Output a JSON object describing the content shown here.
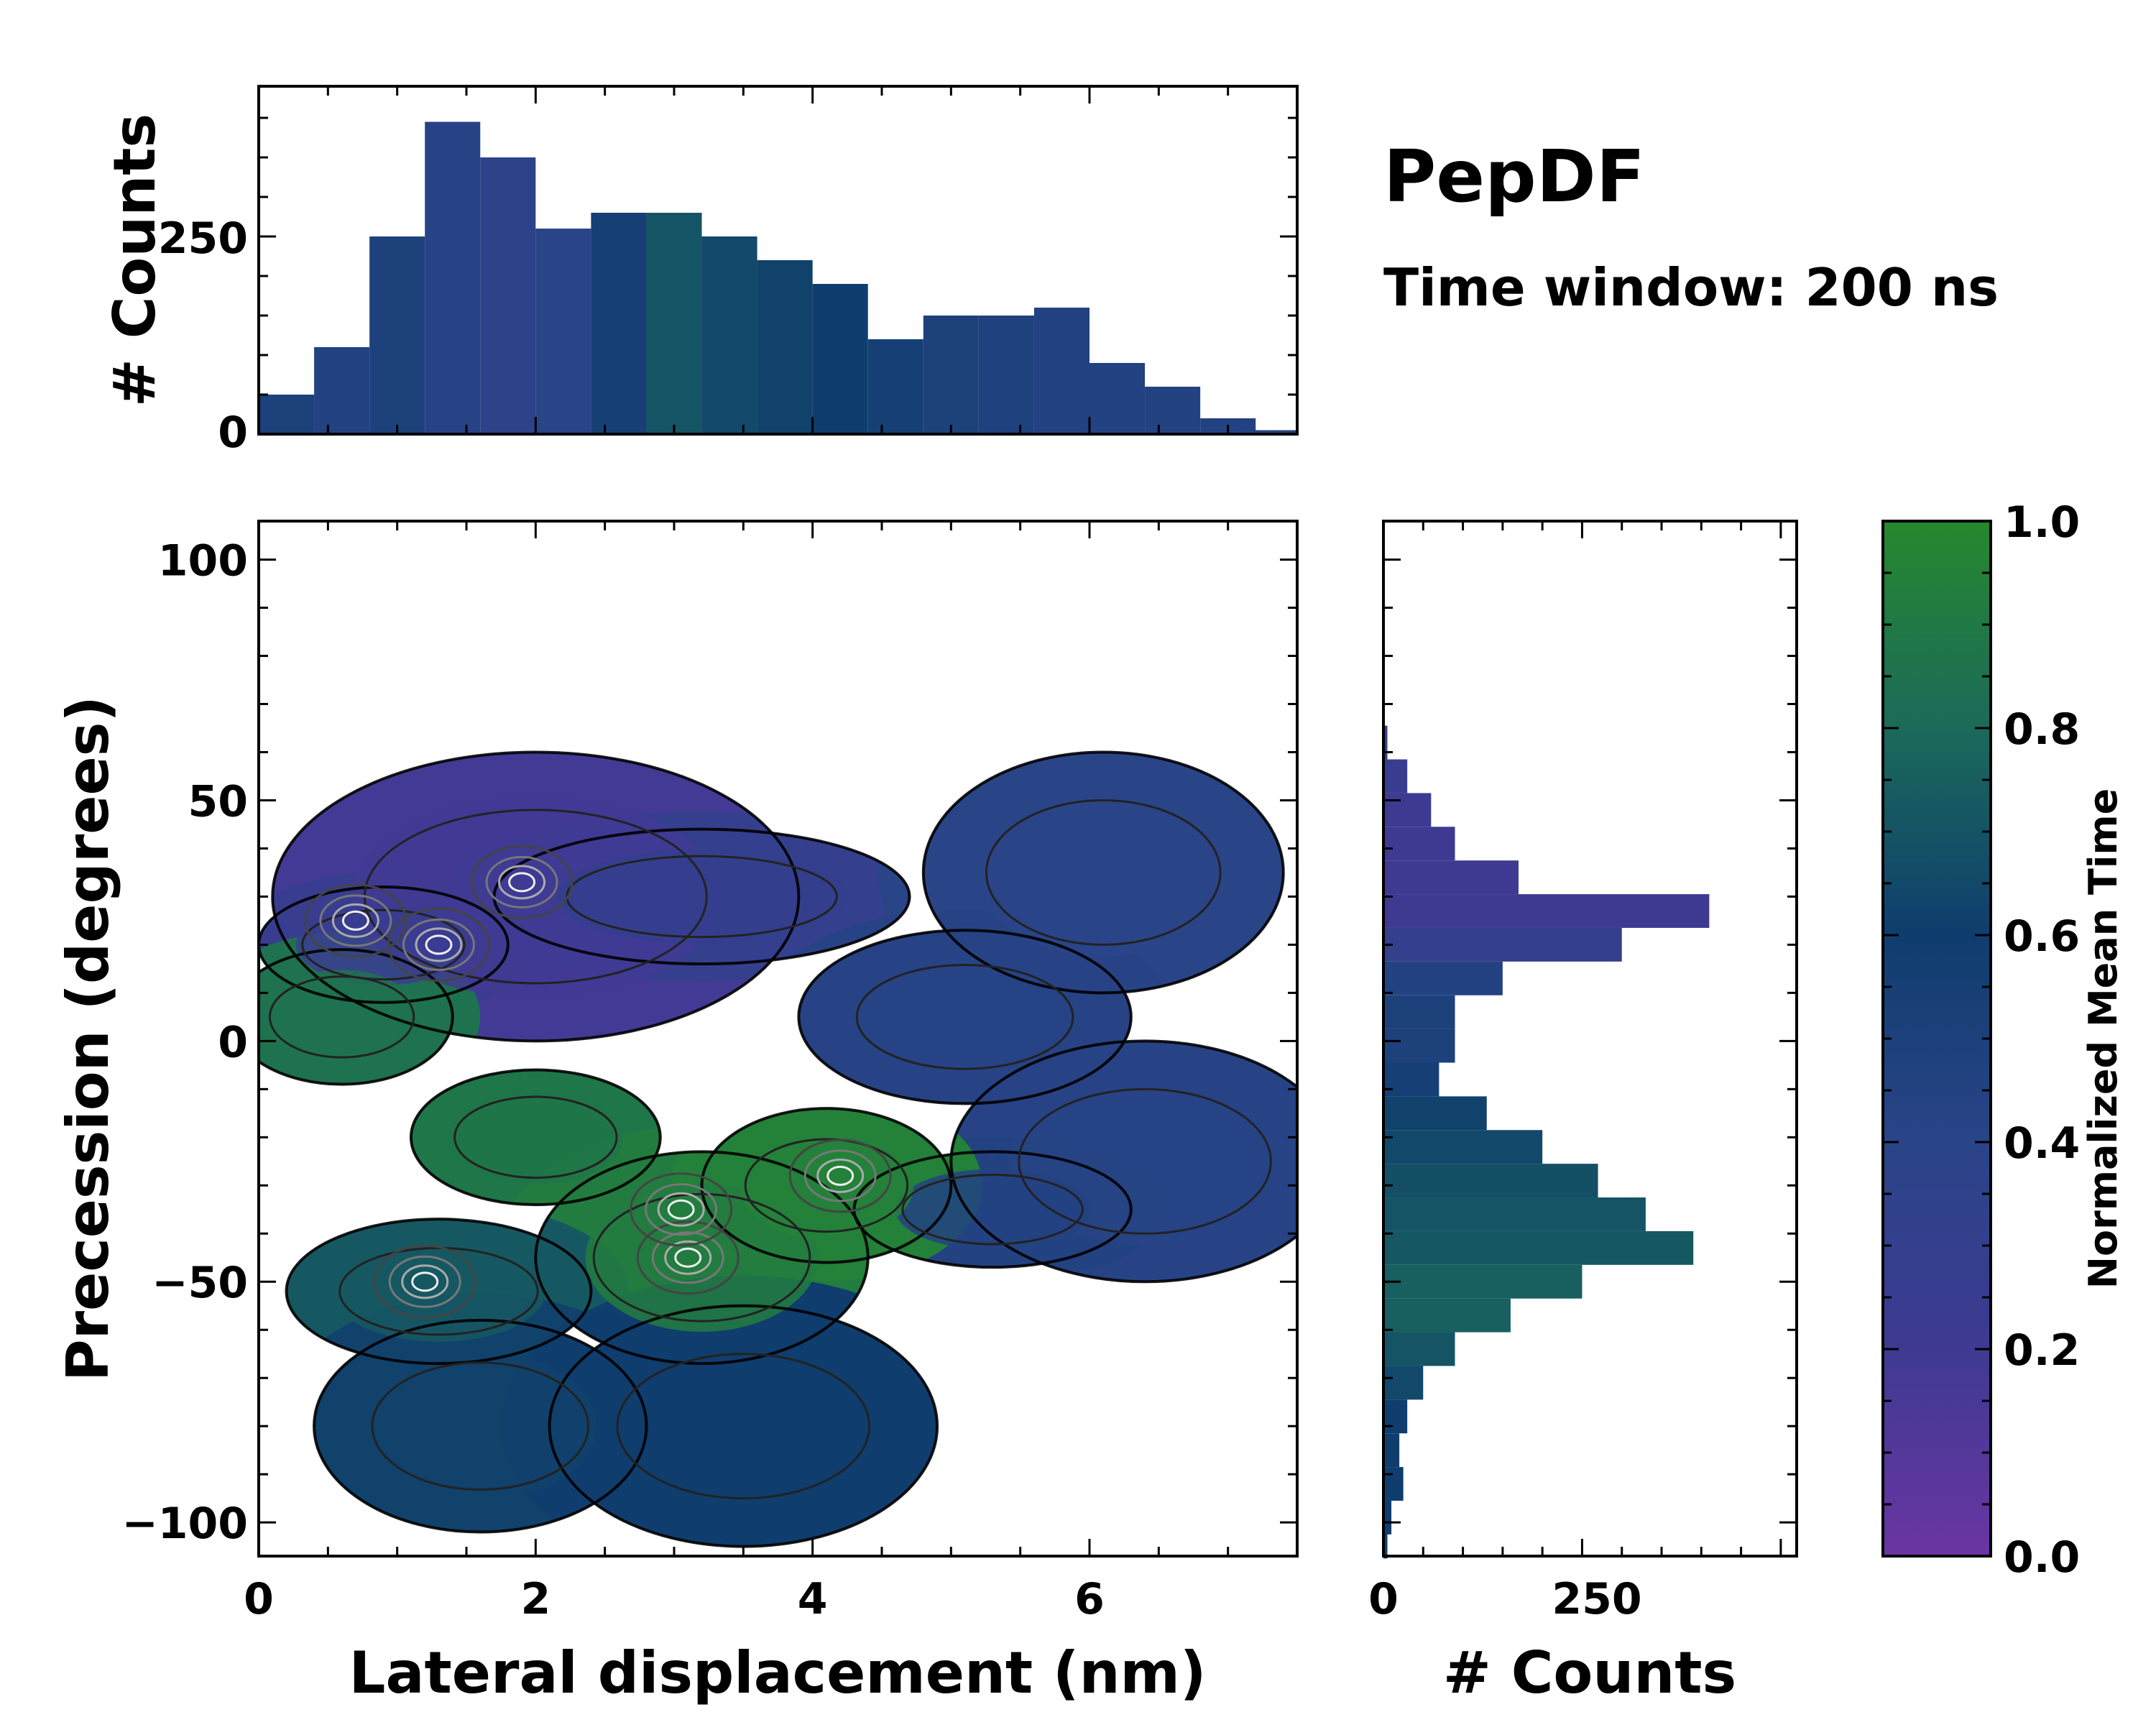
{
  "title": "PepDF",
  "subtitle": "Time window: 200 ns",
  "chart_data": [
    {
      "name": "top-histogram",
      "type": "bar",
      "ylabel": "# Counts",
      "xlim": [
        0,
        7.5
      ],
      "ylim": [
        0,
        440
      ],
      "yticks": [
        0,
        250
      ],
      "ytick_labels": [
        "0",
        "250"
      ],
      "x": [
        0.2,
        0.6,
        1.0,
        1.4,
        1.8,
        2.2,
        2.6,
        3.0,
        3.4,
        3.8,
        4.2,
        4.6,
        5.0,
        5.4,
        5.8,
        6.2,
        6.6,
        7.0,
        7.3
      ],
      "values": [
        50,
        110,
        250,
        395,
        350,
        260,
        280,
        280,
        250,
        220,
        190,
        120,
        150,
        150,
        160,
        90,
        60,
        20,
        5
      ],
      "color_values": [
        0.5,
        0.45,
        0.5,
        0.42,
        0.38,
        0.4,
        0.55,
        0.7,
        0.65,
        0.62,
        0.6,
        0.55,
        0.5,
        0.48,
        0.45,
        0.45,
        0.45,
        0.45,
        0.45
      ]
    },
    {
      "name": "right-histogram",
      "type": "bar",
      "orientation": "horizontal",
      "xlabel": "# Counts",
      "xlim": [
        0,
        520
      ],
      "xticks": [
        0,
        250
      ],
      "xtick_labels": [
        "0",
        "250"
      ],
      "y": [
        62,
        55,
        48,
        41,
        34,
        27,
        20,
        13,
        6,
        -1,
        -8,
        -15,
        -22,
        -29,
        -36,
        -43,
        -50,
        -57,
        -64,
        -71,
        -78,
        -85,
        -92,
        -99,
        -104
      ],
      "values": [
        5,
        30,
        60,
        90,
        170,
        410,
        300,
        150,
        90,
        90,
        70,
        130,
        200,
        270,
        330,
        390,
        250,
        160,
        90,
        50,
        30,
        20,
        25,
        10,
        5
      ],
      "color_values": [
        0.3,
        0.25,
        0.22,
        0.2,
        0.2,
        0.2,
        0.3,
        0.45,
        0.5,
        0.5,
        0.55,
        0.62,
        0.65,
        0.68,
        0.7,
        0.72,
        0.75,
        0.75,
        0.7,
        0.65,
        0.6,
        0.6,
        0.6,
        0.6,
        0.6
      ]
    },
    {
      "name": "main-2d-histogram",
      "type": "heatmap",
      "xlabel": "Lateral displacement (nm)",
      "ylabel": "Precession (degrees)",
      "xlim": [
        0,
        7.5
      ],
      "ylim": [
        -107,
        108
      ],
      "xticks": [
        0,
        2,
        4,
        6
      ],
      "xtick_labels": [
        "0",
        "2",
        "4",
        "6"
      ],
      "yticks": [
        100,
        50,
        0,
        -50,
        -100
      ],
      "ytick_labels": [
        "100",
        "50",
        "0",
        "−50",
        "−100"
      ],
      "color_metric": "Normalized Mean Time",
      "regions": [
        {
          "cx": 2.0,
          "cy": 30,
          "rx": 1.9,
          "ry": 30,
          "value": 0.18
        },
        {
          "cx": 0.9,
          "cy": 20,
          "rx": 0.9,
          "ry": 12,
          "value": 0.25
        },
        {
          "cx": 0.6,
          "cy": 5,
          "rx": 0.8,
          "ry": 14,
          "value": 0.85
        },
        {
          "cx": 3.2,
          "cy": 30,
          "rx": 1.5,
          "ry": 14,
          "value": 0.3
        },
        {
          "cx": 6.1,
          "cy": 35,
          "rx": 1.3,
          "ry": 25,
          "value": 0.4
        },
        {
          "cx": 5.1,
          "cy": 5,
          "rx": 1.2,
          "ry": 18,
          "value": 0.42
        },
        {
          "cx": 6.4,
          "cy": -25,
          "rx": 1.4,
          "ry": 25,
          "value": 0.42
        },
        {
          "cx": 5.3,
          "cy": -35,
          "rx": 1.0,
          "ry": 12,
          "value": 0.45
        },
        {
          "cx": 2.0,
          "cy": -20,
          "rx": 0.9,
          "ry": 14,
          "value": 0.88
        },
        {
          "cx": 3.2,
          "cy": -45,
          "rx": 1.2,
          "ry": 22,
          "value": 0.92
        },
        {
          "cx": 4.1,
          "cy": -30,
          "rx": 0.9,
          "ry": 16,
          "value": 0.95
        },
        {
          "cx": 1.3,
          "cy": -52,
          "rx": 1.1,
          "ry": 15,
          "value": 0.72
        },
        {
          "cx": 1.6,
          "cy": -80,
          "rx": 1.2,
          "ry": 22,
          "value": 0.62
        },
        {
          "cx": 3.5,
          "cy": -80,
          "rx": 1.4,
          "ry": 25,
          "value": 0.6
        }
      ],
      "density_peaks": [
        {
          "x": 1.9,
          "y": 33
        },
        {
          "x": 0.7,
          "y": 25
        },
        {
          "x": 1.3,
          "y": 20
        },
        {
          "x": 3.1,
          "y": -45
        },
        {
          "x": 3.05,
          "y": -35
        },
        {
          "x": 4.2,
          "y": -28
        },
        {
          "x": 1.2,
          "y": -50
        }
      ]
    },
    {
      "name": "colorbar",
      "type": "colorbar",
      "label": "Normalized Mean Time",
      "range": [
        0,
        1
      ],
      "ticks": [
        0,
        0.2,
        0.4,
        0.6,
        0.8,
        1.0
      ],
      "tick_labels": [
        "0.0",
        "0.2",
        "0.4",
        "0.6",
        "0.8",
        "1.0"
      ],
      "colors": [
        "#6a35a3",
        "#3e3a92",
        "#2a4488",
        "#0f3d6e",
        "#1b6a5a",
        "#26882e"
      ]
    }
  ]
}
